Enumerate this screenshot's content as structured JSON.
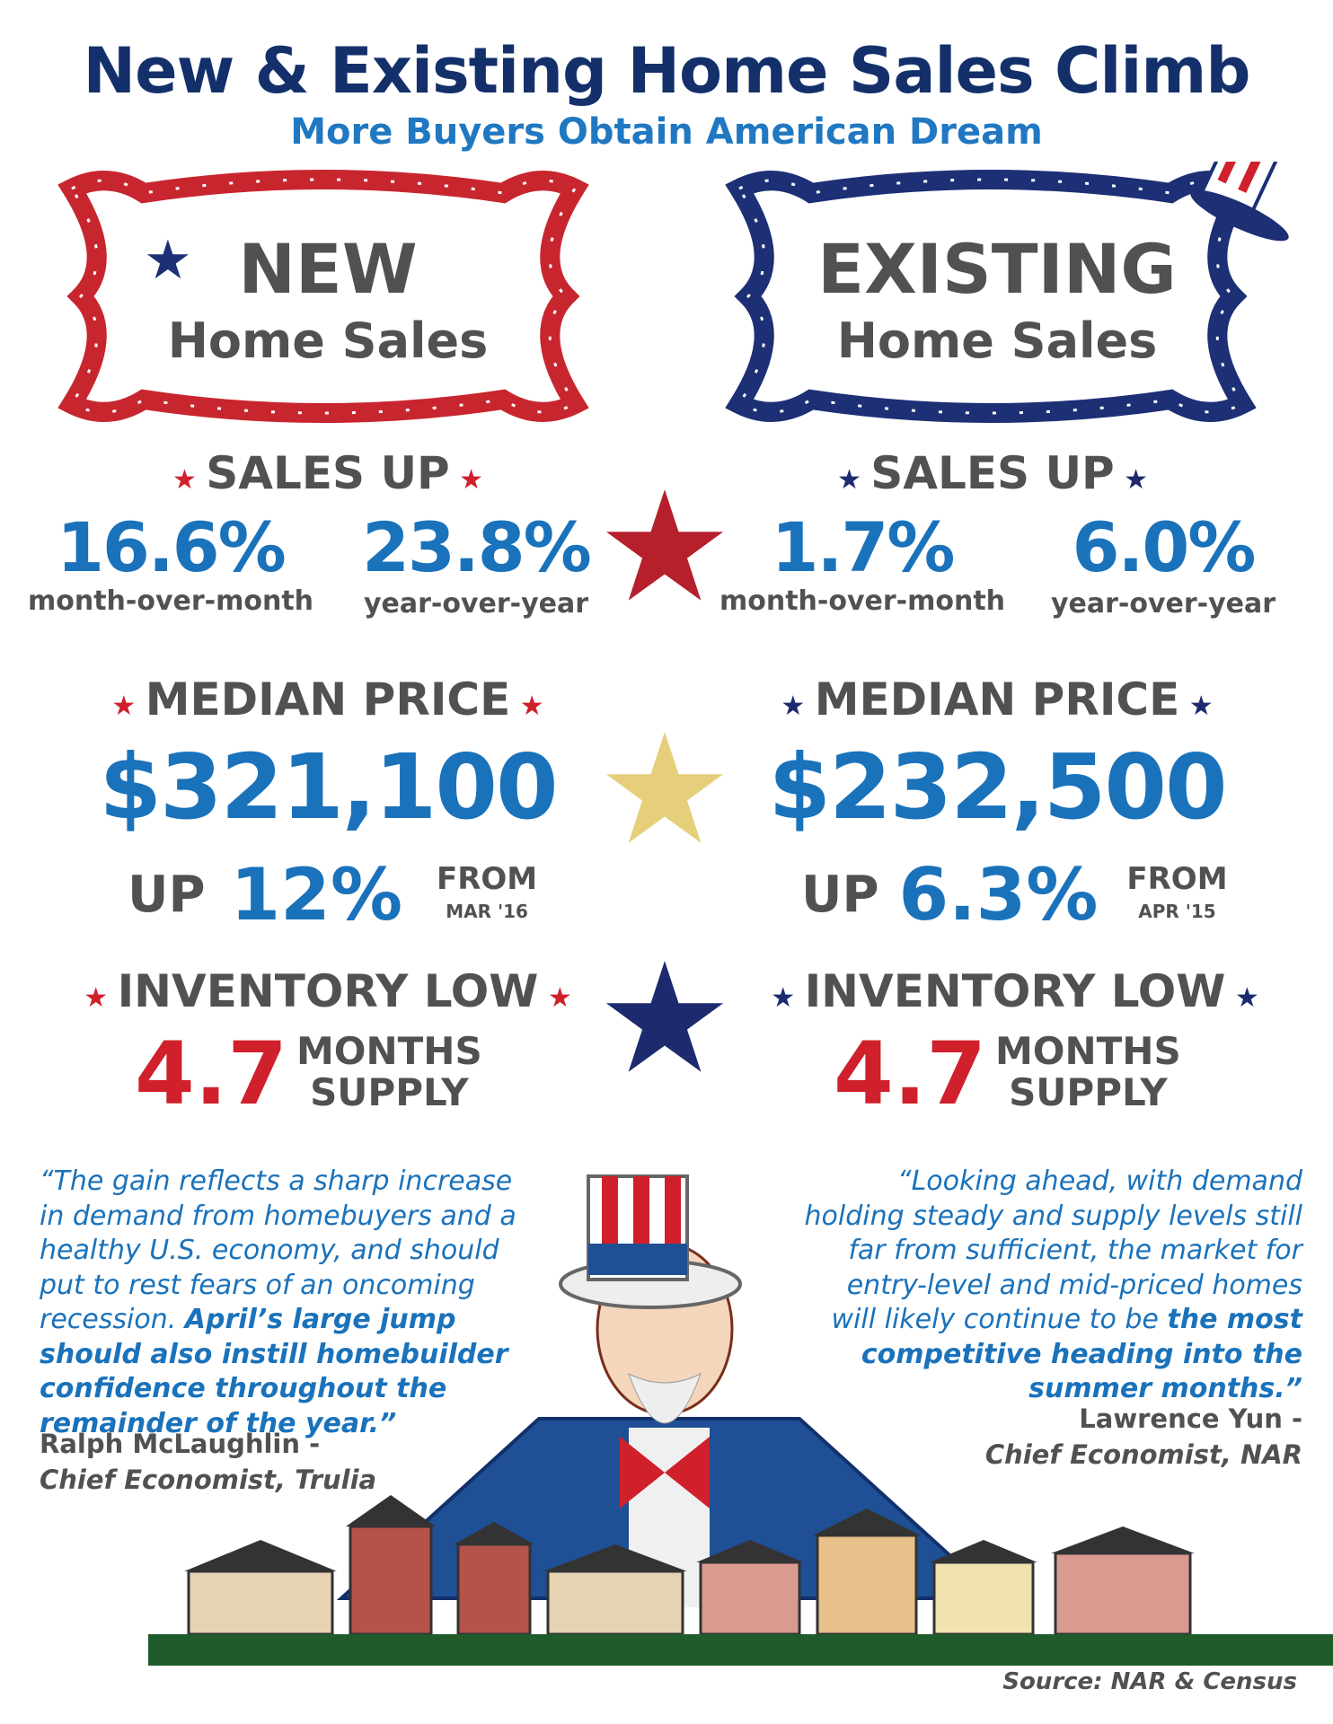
{
  "title": "New & Existing Home Sales Climb",
  "subtitle": "More Buyers Obtain American Dream",
  "colors": {
    "navy": "#13306b",
    "blue": "#1a72bb",
    "red": "#d0202c",
    "gray": "#505152",
    "gold": "#e6cf7a",
    "green": "#1f5b2b"
  },
  "new": {
    "heading": "NEW",
    "subheading": "Home Sales",
    "sales_label": "SALES UP",
    "mom": "16.6%",
    "mom_label": "month-over-month",
    "yoy": "23.8%",
    "yoy_label": "year-over-year",
    "price_label": "MEDIAN PRICE",
    "price": "$321,100",
    "up": "UP",
    "up_pct": "12%",
    "from": "FROM",
    "from_date": "MAR '16",
    "inv_label": "INVENTORY LOW",
    "inv": "4.7",
    "months": "MONTHS",
    "supply": "SUPPLY"
  },
  "existing": {
    "heading": "EXISTING",
    "subheading": "Home Sales",
    "sales_label": "SALES UP",
    "mom": "1.7%",
    "mom_label": "month-over-month",
    "yoy": "6.0%",
    "yoy_label": "year-over-year",
    "price_label": "MEDIAN PRICE",
    "price": "$232,500",
    "up": "UP",
    "up_pct": "6.3%",
    "from": "FROM",
    "from_date": "APR '15",
    "inv_label": "INVENTORY LOW",
    "inv": "4.7",
    "months": "MONTHS",
    "supply": "SUPPLY"
  },
  "quotes": [
    {
      "plain": "“The gain reflects a sharp increase in demand from homebuyers and a healthy U.S. economy, and should put to rest fears of an oncoming recession.",
      "bold": "April’s large jump should also instill homebuilder confidence throughout the remainder of the year.”",
      "author": "Ralph McLaughlin -",
      "role": "Chief Economist, Trulia"
    },
    {
      "plain": "“Looking ahead, with demand holding steady and supply levels still far from sufficient, the market for entry-level and mid-priced homes will likely continue to be",
      "bold": "the most competitive heading into the summer months.”",
      "author": "Lawrence Yun -",
      "role": "Chief Economist, NAR"
    }
  ],
  "source": "Source: NAR & Census"
}
